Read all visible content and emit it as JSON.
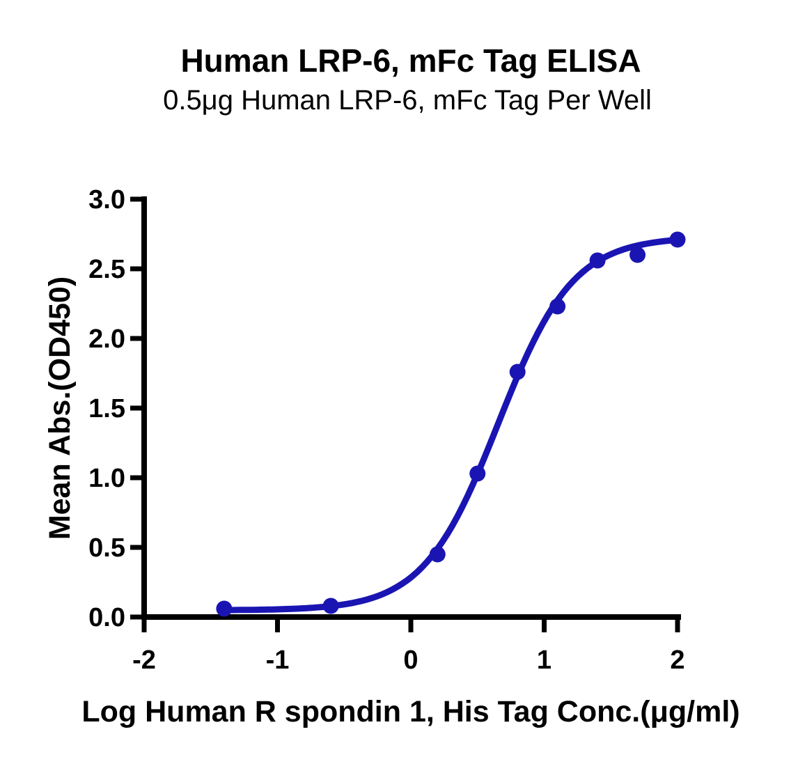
{
  "chart_data": {
    "type": "scatter",
    "title": "Human LRP-6, mFc Tag ELISA",
    "subtitle": "0.5μg Human LRP-6, mFc Tag Per Well",
    "xlabel": "Log Human R spondin 1, His Tag Conc.(μg/ml)",
    "ylabel": "Mean Abs.(OD450)",
    "xlim": [
      -2,
      2
    ],
    "ylim": [
      0,
      3
    ],
    "x_ticks": [
      -2,
      -1,
      0,
      1,
      2
    ],
    "x_tick_labels": [
      "-2",
      "-1",
      "0",
      "1",
      "2"
    ],
    "y_ticks": [
      0,
      0.5,
      1,
      1.5,
      2,
      2.5,
      3
    ],
    "y_tick_labels": [
      "0.0",
      "0.5",
      "1.0",
      "1.5",
      "2.0",
      "2.5",
      "3.0"
    ],
    "grid": false,
    "legend": false,
    "series_color": "#1A15B2",
    "marker": "circle",
    "points": [
      {
        "x": -1.4,
        "y": 0.06
      },
      {
        "x": -0.6,
        "y": 0.08
      },
      {
        "x": 0.2,
        "y": 0.45
      },
      {
        "x": 0.5,
        "y": 1.03
      },
      {
        "x": 0.8,
        "y": 1.76
      },
      {
        "x": 1.1,
        "y": 2.23
      },
      {
        "x": 1.4,
        "y": 2.56
      },
      {
        "x": 1.7,
        "y": 2.6
      },
      {
        "x": 2.0,
        "y": 2.71
      }
    ],
    "fit_curve": {
      "model": "4PL sigmoid",
      "bottom": 0.048,
      "top": 2.73,
      "log_ec50": 0.655,
      "hill_slope": 1.55,
      "x_range": [
        -1.42,
        1.97
      ]
    }
  }
}
